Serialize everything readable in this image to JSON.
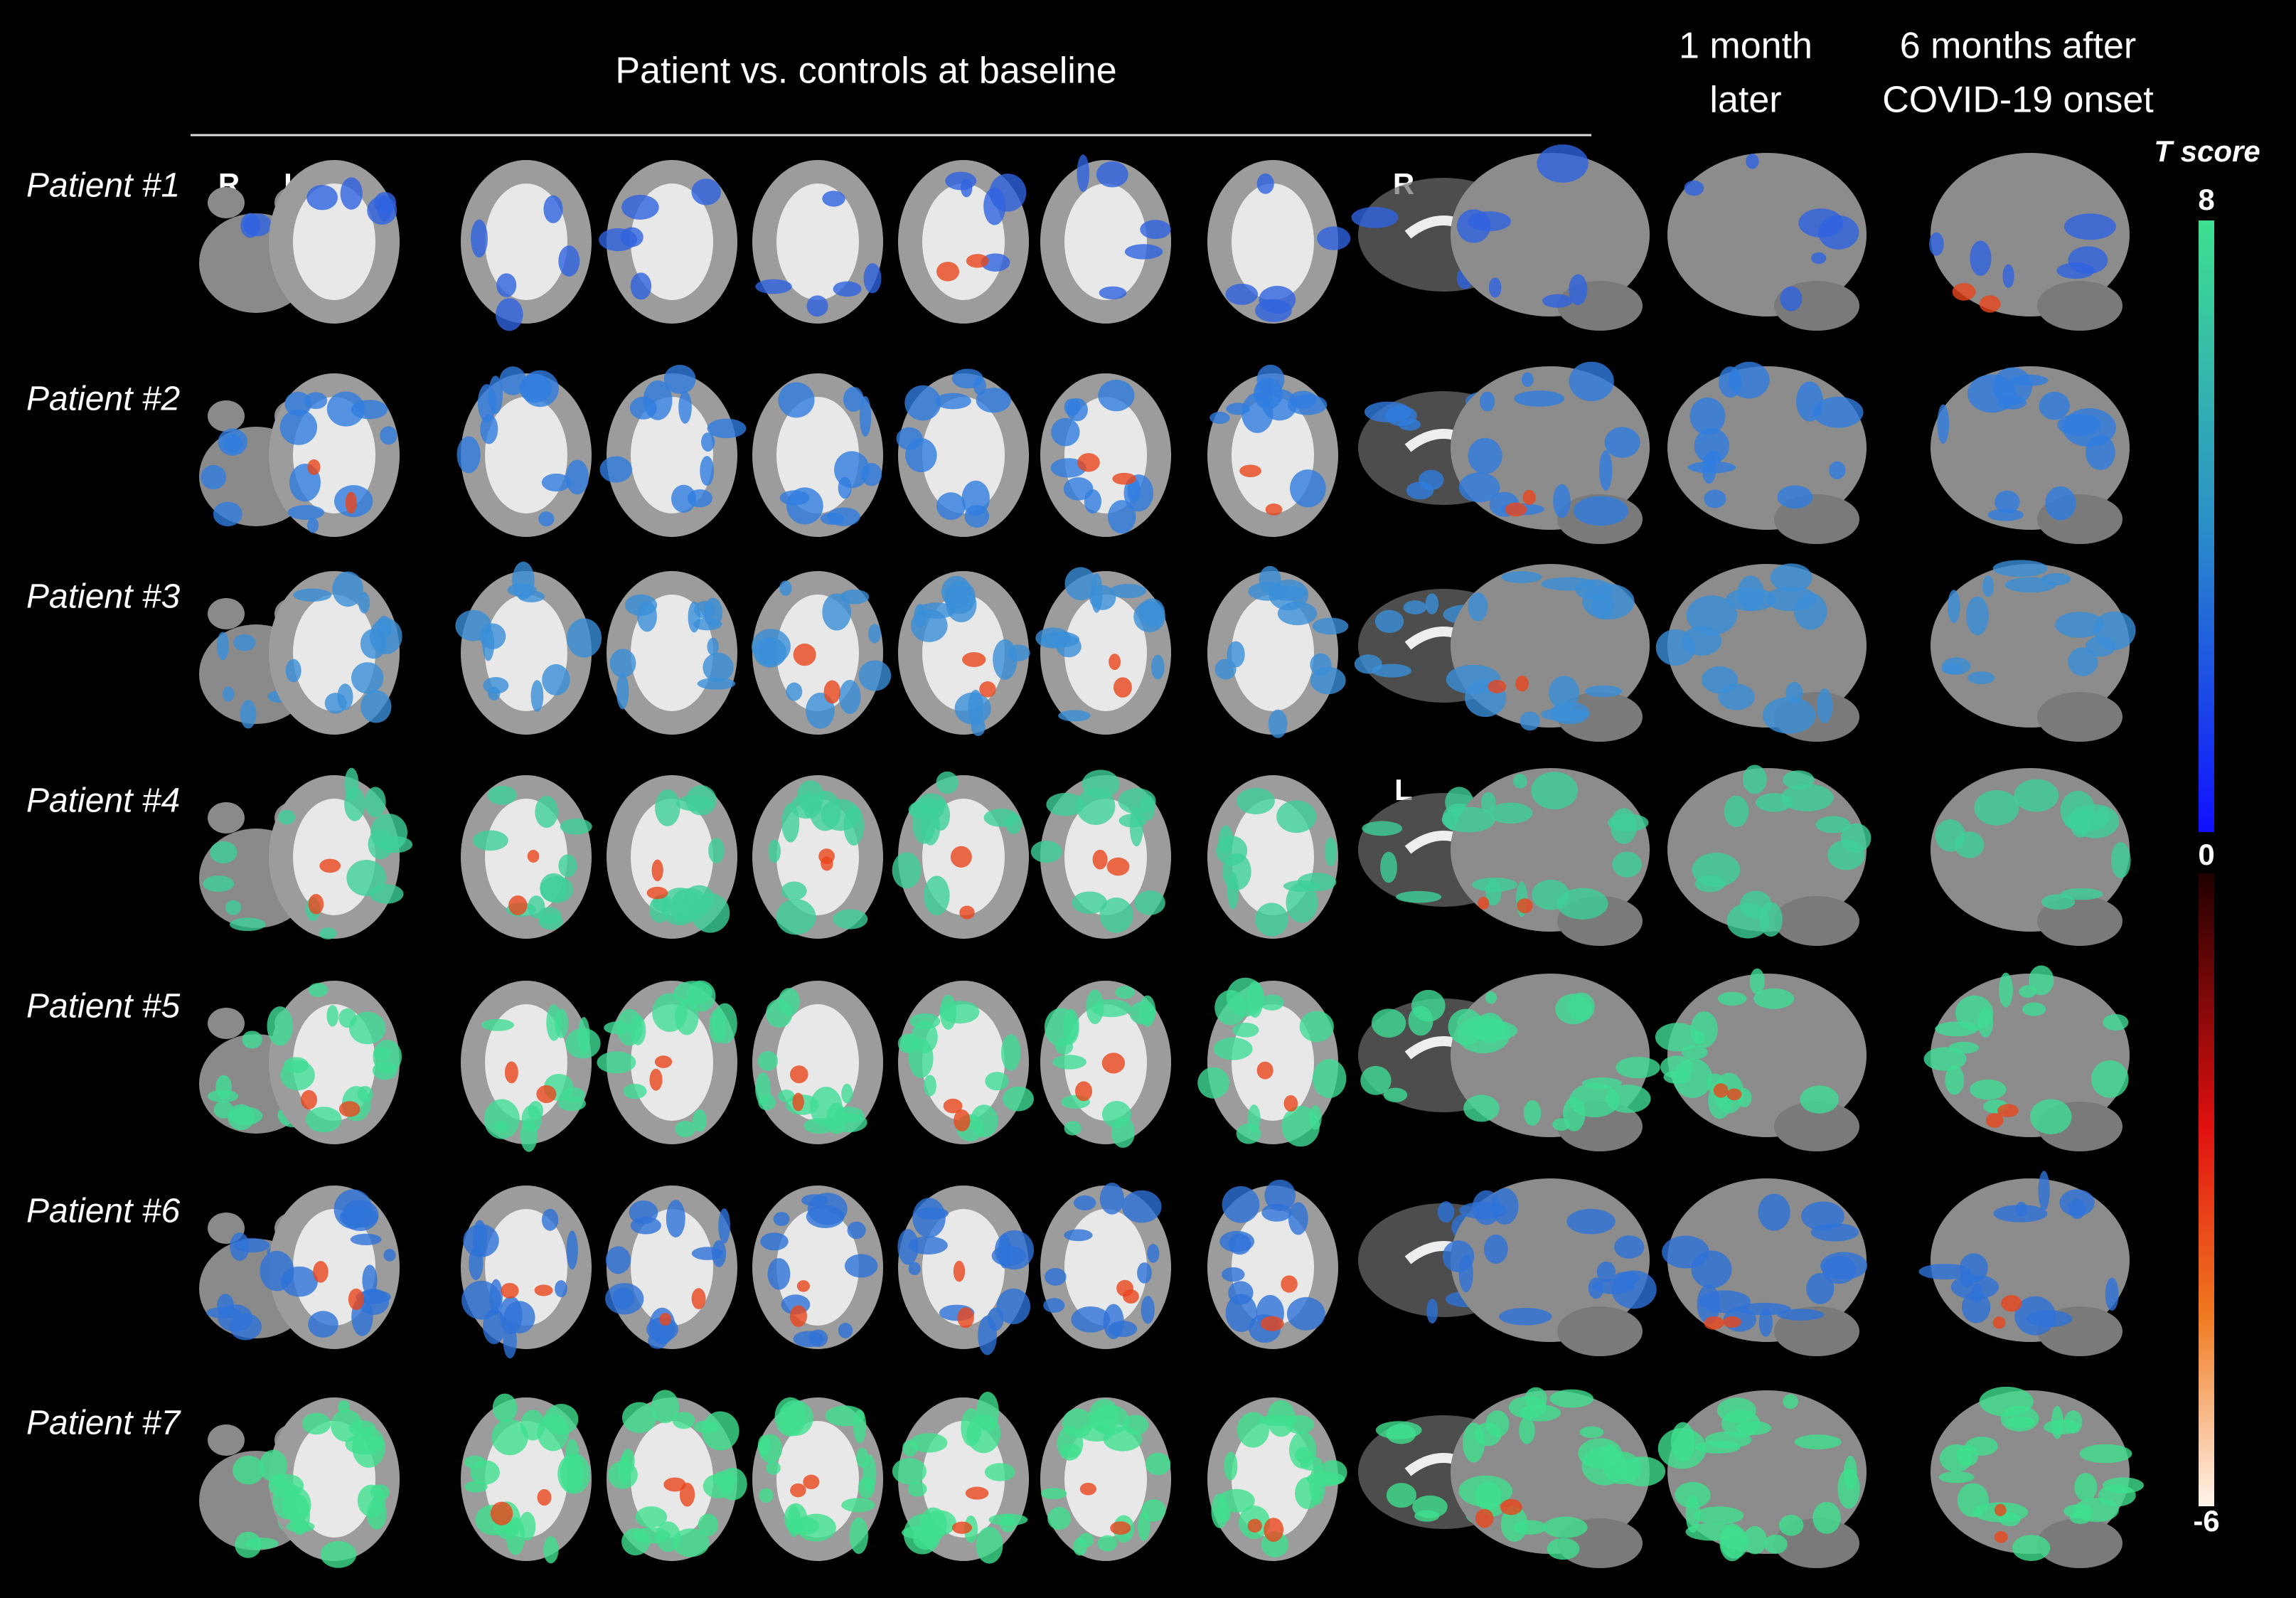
{
  "header": {
    "title": "Patient vs. controls at baseline",
    "columns": [
      {
        "lines": [
          "1 month",
          "later"
        ]
      },
      {
        "lines": [
          "6 months after",
          "COVID-19 onset"
        ]
      }
    ]
  },
  "orientation": {
    "axial_right": "R",
    "axial_left": "L",
    "surface_top": "R",
    "surface_bottom": "L"
  },
  "patients": [
    "Patient #1",
    "Patient #2",
    "Patient #3",
    "Patient #4",
    "Patient #5",
    "Patient #6",
    "Patient #7"
  ],
  "colorbar": {
    "title": "T score",
    "ticks": [
      8,
      0,
      -6
    ]
  }
}
